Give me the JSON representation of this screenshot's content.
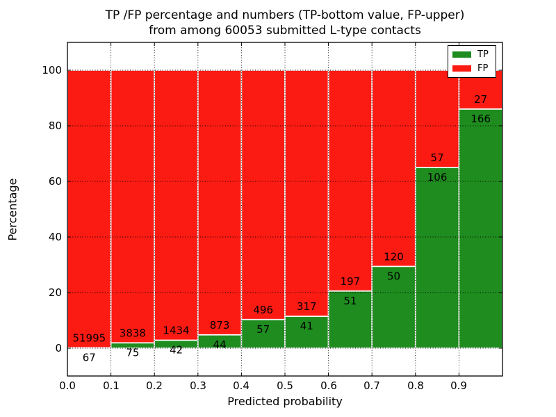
{
  "figure": {
    "title_line1": "TP /FP percentage and numbers (TP-bottom value, FP-upper)",
    "title_line2": "from among 60053 submitted L-type contacts"
  },
  "chart_data": {
    "type": "bar",
    "subtype": "stacked-percentage",
    "title": "TP /FP percentage and numbers (TP-bottom value, FP-upper) from among 60053 submitted L-type contacts",
    "xlabel": "Predicted probability",
    "ylabel": "Percentage",
    "xlim": [
      0.0,
      1.0
    ],
    "ylim": [
      -10,
      110
    ],
    "grid": true,
    "grid_style": "dotted",
    "legend_position": "upper right",
    "total_contacts": 60053,
    "bin_width": 0.1,
    "categories": [
      "0.0-0.1",
      "0.1-0.2",
      "0.2-0.3",
      "0.3-0.4",
      "0.4-0.5",
      "0.5-0.6",
      "0.6-0.7",
      "0.7-0.8",
      "0.8-0.9",
      "0.9-1.0"
    ],
    "x_tick_labels": [
      "0.0",
      "0.1",
      "0.2",
      "0.3",
      "0.4",
      "0.5",
      "0.6",
      "0.7",
      "0.8",
      "0.9"
    ],
    "y_tick_labels": [
      "0",
      "20",
      "40",
      "60",
      "80",
      "100"
    ],
    "y_tick_values": [
      0,
      20,
      40,
      60,
      80,
      100
    ],
    "series": [
      {
        "name": "TP",
        "color": "#1e8c1e",
        "position": "bottom",
        "counts": [
          67,
          75,
          42,
          44,
          57,
          41,
          51,
          50,
          106,
          166
        ]
      },
      {
        "name": "FP",
        "color": "#fb1b13",
        "position": "top",
        "counts": [
          51995,
          3838,
          1434,
          873,
          496,
          317,
          197,
          120,
          57,
          27
        ]
      }
    ],
    "tp_percentages": [
      0.13,
      1.92,
      2.85,
      4.8,
      10.31,
      11.45,
      20.56,
      29.41,
      65.03,
      86.01
    ],
    "bar_total_percentage": 100,
    "edge_color": "#ffffff"
  }
}
